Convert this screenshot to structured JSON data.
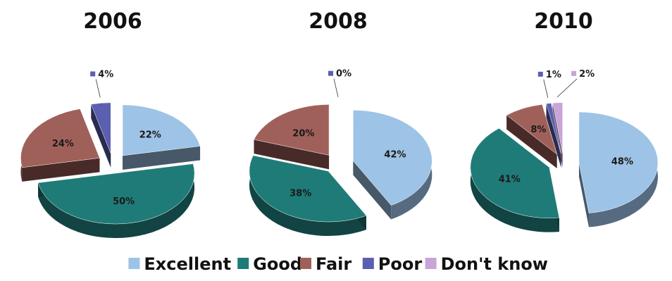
{
  "chart_data": [
    {
      "type": "pie",
      "title": "2006",
      "categories": [
        "Excellent",
        "Good",
        "Fair",
        "Poor",
        "Don't know"
      ],
      "values": [
        22,
        50,
        24,
        4,
        0
      ],
      "labels": [
        "22%",
        "50%",
        "24%",
        "4%",
        ""
      ]
    },
    {
      "type": "pie",
      "title": "2008",
      "categories": [
        "Excellent",
        "Good",
        "Fair",
        "Poor",
        "Don't know"
      ],
      "values": [
        42,
        38,
        20,
        0,
        0
      ],
      "labels": [
        "42%",
        "38%",
        "20%",
        "0%",
        ""
      ]
    },
    {
      "type": "pie",
      "title": "2010",
      "categories": [
        "Excellent",
        "Good",
        "Fair",
        "Poor",
        "Don't know"
      ],
      "values": [
        48,
        41,
        8,
        1,
        2
      ],
      "labels": [
        "48%",
        "41%",
        "8%",
        "1%",
        "2%"
      ]
    }
  ],
  "legend": {
    "position": "bottom",
    "items": [
      {
        "label": "Excellent",
        "color": "#9dc3e6"
      },
      {
        "label": "Good",
        "color": "#1f7b78"
      },
      {
        "label": "Fair",
        "color": "#a0605a"
      },
      {
        "label": "Poor",
        "color": "#5b5fb0"
      },
      {
        "label": "Don't know",
        "color": "#c8a4d8"
      }
    ]
  }
}
